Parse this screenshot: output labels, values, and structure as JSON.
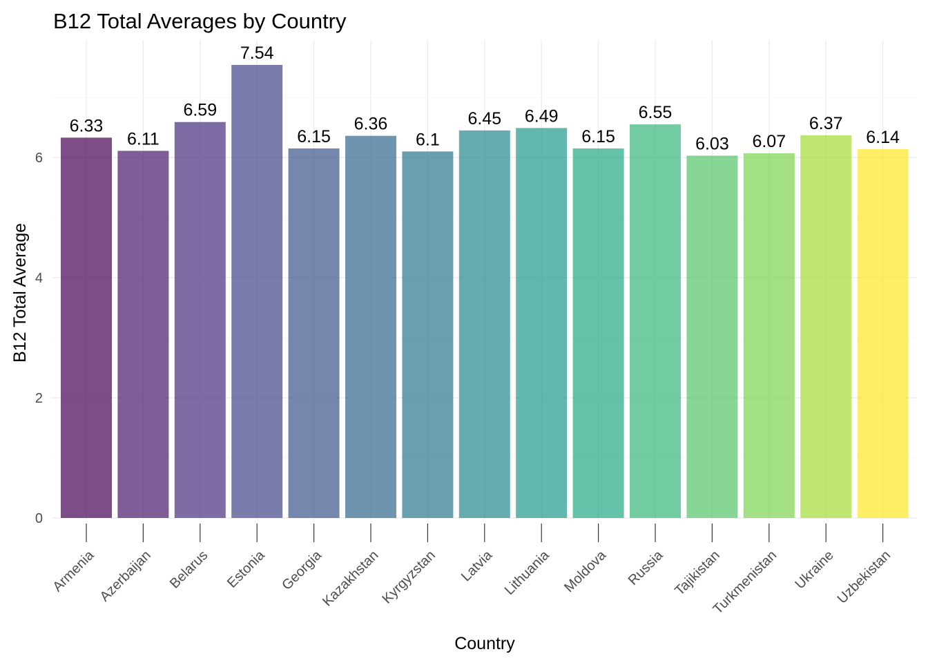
{
  "chart_data": {
    "type": "bar",
    "title": "B12 Total Averages by Country",
    "xlabel": "Country",
    "ylabel": "B12 Total Average",
    "categories": [
      "Armenia",
      "Azerbaijan",
      "Belarus",
      "Estonia",
      "Georgia",
      "Kazakhstan",
      "Kyrgyzstan",
      "Latvia",
      "Lithuania",
      "Moldova",
      "Russia",
      "Tajikistan",
      "Turkmenistan",
      "Ukraine",
      "Uzbekistan"
    ],
    "values": [
      6.33,
      6.11,
      6.59,
      7.54,
      6.15,
      6.36,
      6.1,
      6.45,
      6.49,
      6.15,
      6.55,
      6.03,
      6.07,
      6.37,
      6.14
    ],
    "value_labels": [
      "6.33",
      "6.11",
      "6.59",
      "7.54",
      "6.15",
      "6.36",
      "6.1",
      "6.45",
      "6.49",
      "6.15",
      "6.55",
      "6.03",
      "6.07",
      "6.37",
      "6.14"
    ],
    "colors": [
      "#440154",
      "#481A6C",
      "#472F7D",
      "#414487",
      "#39568C",
      "#31688E",
      "#2A788E",
      "#23888E",
      "#1F988B",
      "#22A884",
      "#35B779",
      "#54C568",
      "#7AD151",
      "#A5DB36",
      "#FDE725"
    ],
    "bar_opacity": 0.7,
    "ylim": [
      0,
      7.9
    ],
    "yticks": [
      0,
      2,
      4,
      6
    ],
    "ytick_labels": [
      "0",
      "2",
      "4",
      "6"
    ],
    "grid": true,
    "legend": "none"
  }
}
